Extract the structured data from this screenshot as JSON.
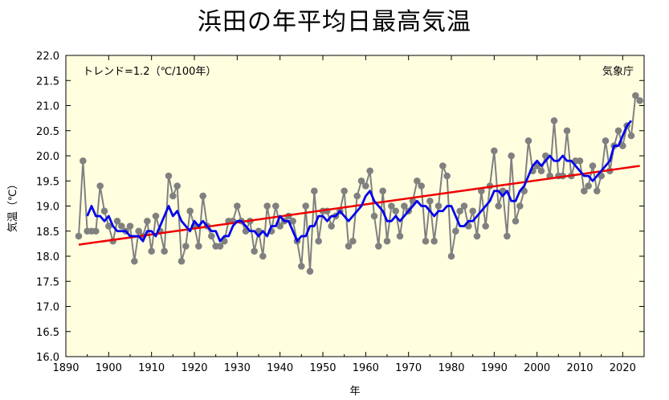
{
  "chart_data": {
    "type": "line",
    "title": "浜田の年平均日最高気温",
    "xlabel": "年",
    "ylabel": "気温（℃）",
    "xlim": [
      1890,
      2025
    ],
    "ylim": [
      16.0,
      22.0
    ],
    "x_ticks": [
      1890,
      1900,
      1910,
      1920,
      1930,
      1940,
      1950,
      1960,
      1970,
      1980,
      1990,
      2000,
      2010,
      2020
    ],
    "y_ticks": [
      "16.0",
      "16.5",
      "17.0",
      "17.5",
      "18.0",
      "18.5",
      "19.0",
      "19.5",
      "20.0",
      "20.5",
      "21.0",
      "21.5",
      "22.0"
    ],
    "grid": false,
    "background": "#ffffe0",
    "annotation_trend": "トレンド=1.2（℃/100年）",
    "annotation_source": "気象庁",
    "colors": {
      "annual": "#808080",
      "moving_average": "#0000ee",
      "trend": "#ee0000"
    },
    "series": [
      {
        "kind": "annual",
        "x": [
          1893,
          1894,
          1895,
          1896,
          1897,
          1898,
          1899,
          1900,
          1901,
          1902,
          1903,
          1904,
          1905,
          1906,
          1907,
          1908,
          1909,
          1910,
          1911,
          1912,
          1913,
          1914,
          1915,
          1916,
          1917,
          1918,
          1919,
          1920,
          1921,
          1922,
          1923,
          1924,
          1925,
          1926,
          1927,
          1928,
          1929,
          1930,
          1931,
          1932,
          1933,
          1934,
          1935,
          1936,
          1937,
          1938,
          1939,
          1940,
          1941,
          1942,
          1943,
          1944,
          1945,
          1946,
          1947,
          1948,
          1949,
          1950,
          1951,
          1952,
          1953,
          1954,
          1955,
          1956,
          1957,
          1958,
          1959,
          1960,
          1961,
          1962,
          1963,
          1964,
          1965,
          1966,
          1967,
          1968,
          1969,
          1970,
          1971,
          1972,
          1973,
          1974,
          1975,
          1976,
          1977,
          1978,
          1979,
          1980,
          1981,
          1982,
          1983,
          1984,
          1985,
          1986,
          1987,
          1988,
          1989,
          1990,
          1991,
          1992,
          1993,
          1994,
          1995,
          1996,
          1997,
          1998,
          1999,
          2000,
          2001,
          2002,
          2003,
          2004,
          2005,
          2006,
          2007,
          2008,
          2009,
          2010,
          2011,
          2012,
          2013,
          2014,
          2015,
          2016,
          2017,
          2018,
          2019,
          2020,
          2021,
          2022,
          2023,
          2024
        ],
        "y": [
          18.4,
          19.9,
          18.5,
          18.5,
          18.5,
          19.4,
          18.9,
          18.6,
          18.3,
          18.7,
          18.6,
          18.5,
          18.6,
          17.9,
          18.5,
          18.4,
          18.7,
          18.1,
          18.8,
          18.5,
          18.1,
          19.6,
          19.2,
          19.4,
          17.9,
          18.2,
          18.9,
          18.6,
          18.2,
          19.2,
          18.6,
          18.4,
          18.2,
          18.2,
          18.3,
          18.7,
          18.7,
          19.0,
          18.7,
          18.5,
          18.7,
          18.1,
          18.5,
          18.0,
          19.0,
          18.5,
          19.0,
          18.6,
          18.7,
          18.8,
          18.7,
          18.3,
          17.8,
          19.0,
          17.7,
          19.3,
          18.3,
          18.9,
          18.9,
          18.6,
          18.8,
          18.9,
          19.3,
          18.2,
          18.3,
          19.2,
          19.5,
          19.4,
          19.7,
          18.8,
          18.2,
          19.3,
          18.3,
          19.0,
          18.9,
          18.4,
          19.0,
          18.9,
          19.1,
          19.5,
          19.4,
          18.3,
          19.1,
          18.3,
          19.0,
          19.8,
          19.6,
          18.0,
          18.5,
          18.9,
          19.0,
          18.6,
          18.9,
          18.4,
          19.3,
          18.6,
          19.4,
          20.1,
          19.0,
          19.3,
          18.4,
          20.0,
          18.7,
          19.0,
          19.3,
          20.3,
          19.7,
          19.8,
          19.7,
          20.0,
          19.6,
          20.7,
          19.6,
          19.6,
          20.5,
          19.6,
          19.9,
          19.9,
          19.3,
          19.4,
          19.8,
          19.3,
          19.6,
          20.3,
          19.7,
          20.2,
          20.5,
          20.2,
          20.6,
          20.4,
          21.2,
          21.1
        ]
      },
      {
        "kind": "moving_average",
        "x": [
          1895,
          1896,
          1897,
          1898,
          1899,
          1900,
          1901,
          1902,
          1903,
          1904,
          1905,
          1906,
          1907,
          1908,
          1909,
          1910,
          1911,
          1912,
          1913,
          1914,
          1915,
          1916,
          1917,
          1918,
          1919,
          1920,
          1921,
          1922,
          1923,
          1924,
          1925,
          1926,
          1927,
          1928,
          1929,
          1930,
          1931,
          1932,
          1933,
          1934,
          1935,
          1936,
          1937,
          1938,
          1939,
          1940,
          1941,
          1942,
          1943,
          1944,
          1945,
          1946,
          1947,
          1948,
          1949,
          1950,
          1951,
          1952,
          1953,
          1954,
          1955,
          1956,
          1957,
          1958,
          1959,
          1960,
          1961,
          1962,
          1963,
          1964,
          1965,
          1966,
          1967,
          1968,
          1969,
          1970,
          1971,
          1972,
          1973,
          1974,
          1975,
          1976,
          1977,
          1978,
          1979,
          1980,
          1981,
          1982,
          1983,
          1984,
          1985,
          1986,
          1987,
          1988,
          1989,
          1990,
          1991,
          1992,
          1993,
          1994,
          1995,
          1996,
          1997,
          1998,
          1999,
          2000,
          2001,
          2002,
          2003,
          2004,
          2005,
          2006,
          2007,
          2008,
          2009,
          2010,
          2011,
          2012,
          2013,
          2014,
          2015,
          2016,
          2017,
          2018,
          2019,
          2020,
          2021,
          2022
        ],
        "y": [
          18.8,
          19.0,
          18.8,
          18.8,
          18.7,
          18.8,
          18.6,
          18.5,
          18.5,
          18.5,
          18.4,
          18.4,
          18.4,
          18.3,
          18.5,
          18.5,
          18.4,
          18.6,
          18.8,
          19.0,
          18.8,
          18.9,
          18.7,
          18.6,
          18.5,
          18.7,
          18.6,
          18.7,
          18.6,
          18.5,
          18.5,
          18.3,
          18.4,
          18.4,
          18.6,
          18.7,
          18.7,
          18.6,
          18.5,
          18.5,
          18.4,
          18.5,
          18.4,
          18.6,
          18.6,
          18.8,
          18.7,
          18.7,
          18.5,
          18.3,
          18.4,
          18.4,
          18.6,
          18.6,
          18.8,
          18.8,
          18.7,
          18.8,
          18.8,
          18.9,
          18.8,
          18.7,
          18.8,
          18.9,
          19.0,
          19.2,
          19.3,
          19.1,
          19.0,
          18.9,
          18.7,
          18.7,
          18.8,
          18.7,
          18.8,
          18.9,
          19.0,
          19.1,
          19.0,
          19.0,
          18.9,
          18.8,
          18.9,
          18.9,
          19.0,
          19.0,
          18.8,
          18.6,
          18.6,
          18.7,
          18.7,
          18.8,
          18.9,
          19.0,
          19.1,
          19.3,
          19.3,
          19.2,
          19.3,
          19.1,
          19.1,
          19.3,
          19.4,
          19.6,
          19.8,
          19.9,
          19.8,
          19.9,
          20.0,
          19.9,
          19.9,
          20.0,
          19.9,
          19.9,
          19.8,
          19.7,
          19.6,
          19.6,
          19.5,
          19.6,
          19.7,
          19.8,
          19.9,
          20.2,
          20.2,
          20.4,
          20.6,
          20.7
        ]
      },
      {
        "kind": "trend",
        "x": [
          1893,
          2024
        ],
        "y": [
          18.23,
          19.8
        ]
      }
    ]
  }
}
